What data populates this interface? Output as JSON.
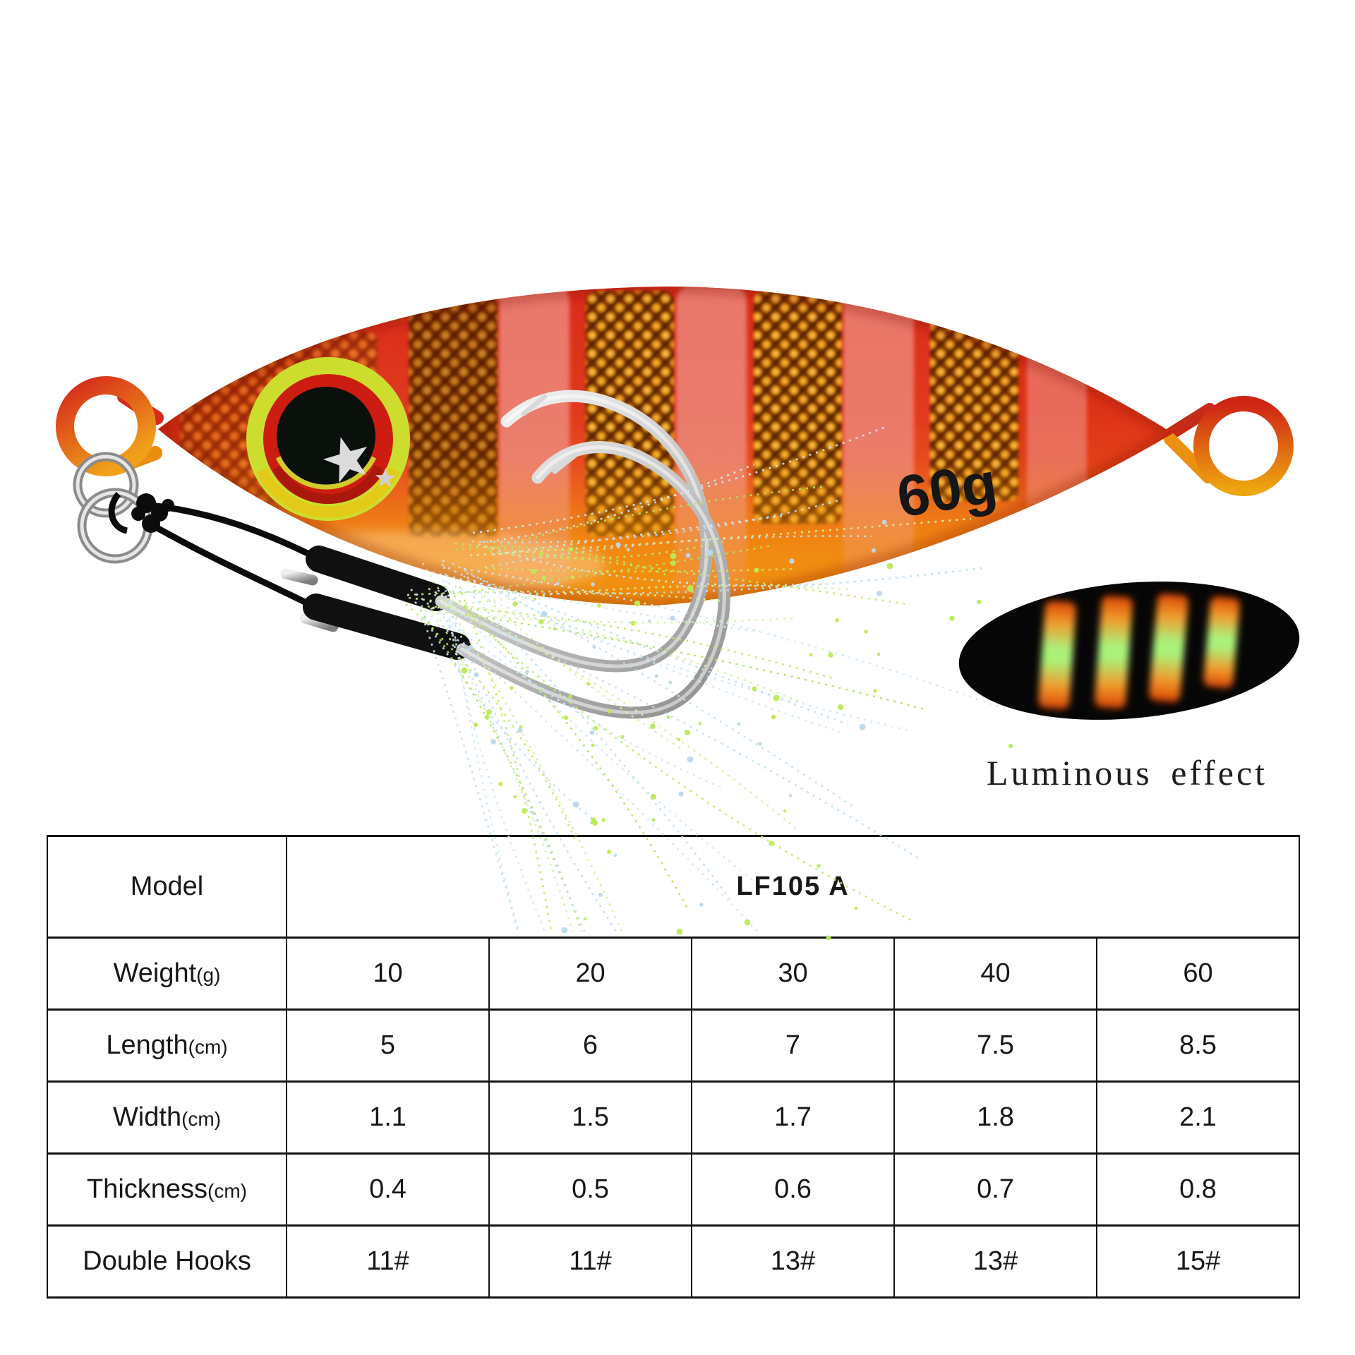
{
  "lure": {
    "weight_text": "60g",
    "description": "red-orange striped slow jig with double assist hooks and tinsel skirt"
  },
  "luminous": {
    "caption": "Luminous effect"
  },
  "table": {
    "model_label": "Model",
    "model_value": "LF105 A",
    "rows": [
      {
        "label": "Weight",
        "unit": "(g)",
        "values": [
          "10",
          "20",
          "30",
          "40",
          "60"
        ]
      },
      {
        "label": "Length",
        "unit": "(cm)",
        "values": [
          "5",
          "6",
          "7",
          "7.5",
          "8.5"
        ]
      },
      {
        "label": "Width",
        "unit": "(cm)",
        "values": [
          "1.1",
          "1.5",
          "1.7",
          "1.8",
          "2.1"
        ]
      },
      {
        "label": "Thickness",
        "unit": "(cm)",
        "values": [
          "0.4",
          "0.5",
          "0.6",
          "0.7",
          "0.8"
        ]
      },
      {
        "label": "Double Hooks",
        "unit": "",
        "values": [
          "11#",
          "11#",
          "13#",
          "13#",
          "15#"
        ]
      }
    ]
  },
  "colors": {
    "body_red": "#d92b1b",
    "body_orange": "#f29b0e",
    "stripe_pink": "#ef9286",
    "net_gold": "#f2a713",
    "eye_ring_yellow": "#ccdd2e",
    "eye_iris_red": "#cd1d10",
    "lumi_green": "#aaf27c",
    "lumi_orange": "#f0992a",
    "silver": "#c2c2c2",
    "cord_black": "#0b0b0b",
    "table_line": "#141414"
  }
}
